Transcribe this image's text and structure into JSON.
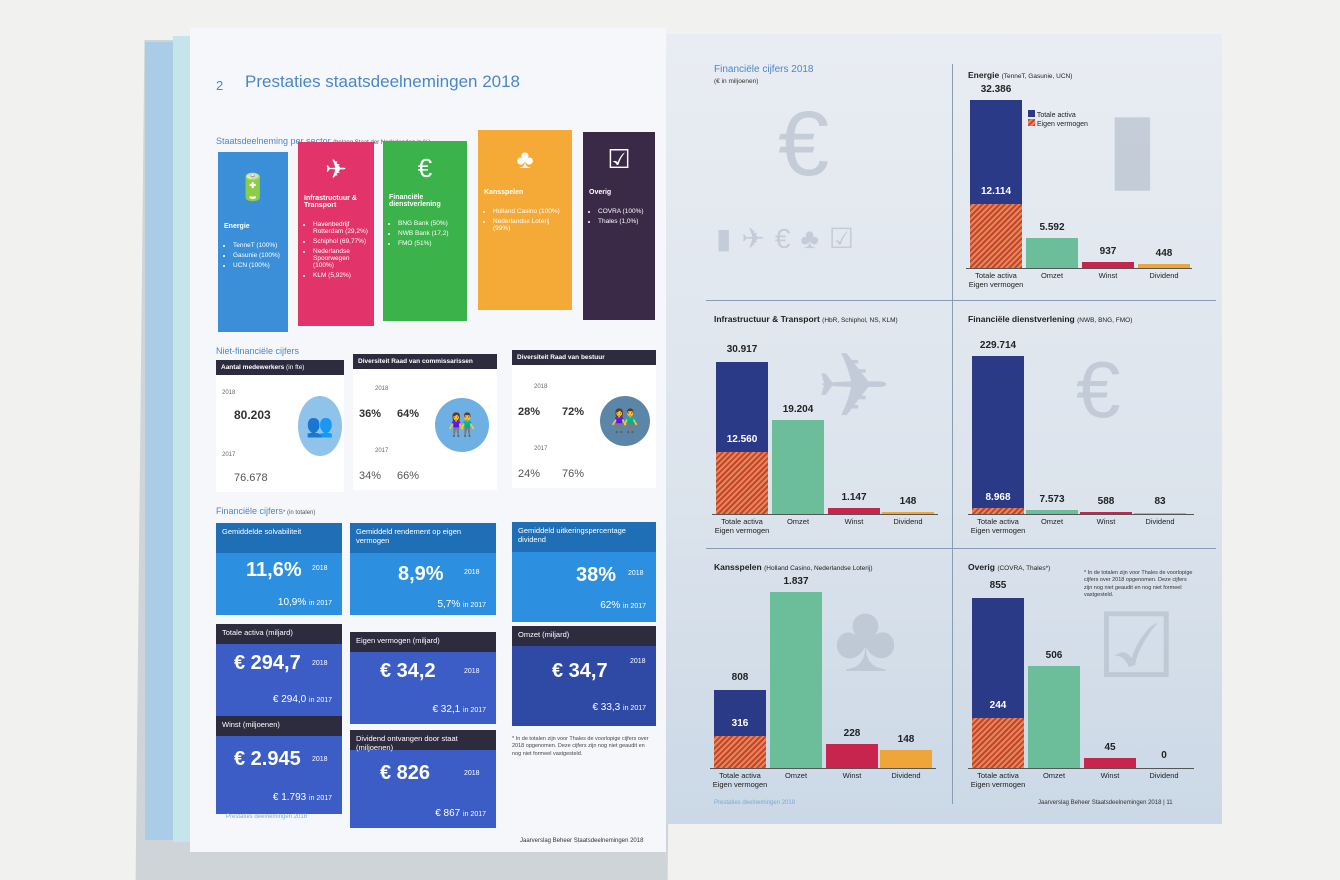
{
  "left_page": {
    "page_number": "2",
    "title": "Prestaties staatsdeelnemingen 2018",
    "sector_heading": "Staatsdeelneming per sector",
    "sector_heading_note": "(belang Staat der Nederlanden in %)",
    "sectors": [
      {
        "name": "Energie",
        "color": "#3a8fd8",
        "items": [
          "TenneT (100%)",
          "Gasunie (100%)",
          "UCN (100%)"
        ]
      },
      {
        "name": "Infrastructuur & Transport",
        "color": "#e2336b",
        "items": [
          "Havenbedrijf Rotterdam (29,2%)",
          "Schiphol (69,77%)",
          "Nederlandse Spoorwegen (100%)",
          "KLM (5,92%)"
        ]
      },
      {
        "name": "Financiële dienstverlening",
        "color": "#3bb24a",
        "items": [
          "BNG Bank (50%)",
          "NWB Bank (17,2)",
          "FMO (51%)"
        ]
      },
      {
        "name": "Kansspelen",
        "color": "#f5a937",
        "items": [
          "Holland Casino (100%)",
          "Nederlandse Loterij (99%)"
        ]
      },
      {
        "name": "Overig",
        "color": "#3a2a48",
        "items": [
          "COVRA (100%)",
          "Thales (1,0%)"
        ]
      }
    ],
    "nonfin_heading": "Niet-financiële cijfers",
    "employees": {
      "title": "Aantal medewerkers",
      "unit": "(in fte)",
      "y2018": "2018",
      "v2018": "80.203",
      "y2017": "2017",
      "v2017": "76.678"
    },
    "rvc": {
      "title": "Diversiteit Raad van commissarissen",
      "y2018": "2018",
      "f2018": "36%",
      "m2018": "64%",
      "y2017": "2017",
      "f2017": "34%",
      "m2017": "66%"
    },
    "rvb": {
      "title": "Diversiteit Raad van bestuur",
      "y2018": "2018",
      "f2018": "28%",
      "m2018": "72%",
      "y2017": "2017",
      "f2017": "24%",
      "m2017": "76%"
    },
    "fin_heading": "Financiële cijfers",
    "fin_heading_note": "(in totalen)",
    "fin_cards": [
      {
        "title": "Gemiddelde solvabiliteit",
        "value": "11,6%",
        "year": "2018",
        "prev": "10,9%",
        "prev_year": "in 2017"
      },
      {
        "title": "Gemiddeld rendement op eigen vermogen",
        "value": "8,9%",
        "year": "2018",
        "prev": "5,7%",
        "prev_year": "in 2017"
      },
      {
        "title": "Gemiddeld uitkeringspercentage dividend",
        "value": "38%",
        "year": "2018",
        "prev": "62%",
        "prev_year": "in 2017"
      },
      {
        "title": "Totale activa (miljard)",
        "value": "€ 294,7",
        "year": "2018",
        "prev": "€ 294,0",
        "prev_year": "in 2017"
      },
      {
        "title": "Eigen vermogen (miljard)",
        "value": "€ 34,2",
        "year": "2018",
        "prev": "€ 32,1",
        "prev_year": "in 2017"
      },
      {
        "title": "Omzet (miljard)",
        "value": "€ 34,7",
        "year": "2018",
        "prev": "€ 33,3",
        "prev_year": "in 2017"
      },
      {
        "title": "Winst (miljoenen)",
        "value": "€ 2.945",
        "year": "2018",
        "prev": "€ 1.793",
        "prev_year": "in 2017"
      },
      {
        "title": "Dividend ontvangen door staat (miljoenen)",
        "value": "€ 826",
        "year": "2018",
        "prev": "€ 867",
        "prev_year": "in 2017"
      }
    ],
    "footnote": "* In de totalen zijn voor Thales de voorlopige cijfers over 2018 opgenomen. Deze cijfers zijn nog niet geaudit en nog niet formeel vastgesteld.",
    "footer_left": "Prestaties deelnemingen 2018",
    "footer_right": "Jaarverslag Beheer Staatsdeelnemingen 2018"
  },
  "right_page": {
    "fin_title": "Financiële cijfers 2018",
    "fin_subtitle": "(€ in miljoenen)",
    "legend": {
      "total": "Totale activa",
      "equity": "Eigen vermogen"
    },
    "footnote": "* In de totalen zijn voor Thales de voorlopige cijfers over 2018 opgenomen. Deze cijfers zijn nog niet geaudit en nog niet formeel vastgesteld.",
    "footer_left": "Prestaties deelnemingen 2018",
    "footer_right": "Jaarverslag Beheer Staatsdeelnemingen 2018",
    "footer_page": "11",
    "panels": [
      {
        "title": "Energie",
        "sub": "(TenneT, Gasunie, UCN)",
        "total": "32.386",
        "equity": "12.114",
        "omzet": "5.592",
        "winst": "937",
        "dividend": "448",
        "labels": {
          "a": "Totale activa",
          "b": "Eigen vermogen",
          "omzet": "Omzet",
          "winst": "Winst",
          "dividend": "Dividend"
        }
      },
      {
        "title": "Infrastructuur & Transport",
        "sub": "(HbR, Schiphol, NS, KLM)",
        "total": "30.917",
        "equity": "12.560",
        "omzet": "19.204",
        "winst": "1.147",
        "dividend": "148",
        "labels": {
          "a": "Totale activa",
          "b": "Eigen vermogen",
          "omzet": "Omzet",
          "winst": "Winst",
          "dividend": "Dividend"
        }
      },
      {
        "title": "Financiële dienstverlening",
        "sub": "(NWB, BNG, FMO)",
        "total": "229.714",
        "equity": "8.968",
        "omzet": "7.573",
        "winst": "588",
        "dividend": "83",
        "labels": {
          "a": "Totale activa",
          "b": "Eigen vermogen",
          "omzet": "Omzet",
          "winst": "Winst",
          "dividend": "Dividend"
        }
      },
      {
        "title": "Kansspelen",
        "sub": "(Holland Casino, Nederlandse Loterij)",
        "total": "808",
        "equity": "316",
        "omzet": "1.837",
        "winst": "228",
        "dividend": "148",
        "labels": {
          "a": "Totale activa",
          "b": "Eigen vermogen",
          "omzet": "Omzet",
          "winst": "Winst",
          "dividend": "Dividend"
        }
      },
      {
        "title": "Overig",
        "sub": "(COVRA, Thales*)",
        "total": "855",
        "equity": "244",
        "omzet": "506",
        "winst": "45",
        "dividend": "0",
        "labels": {
          "a": "Totale activa",
          "b": "Eigen vermogen",
          "omzet": "Omzet",
          "winst": "Winst",
          "dividend": "Dividend"
        }
      }
    ]
  },
  "colors": {
    "total": "#2a3a86",
    "omzet": "#6cbd9a",
    "winst": "#c7244e",
    "dividend": "#f0a53a"
  }
}
